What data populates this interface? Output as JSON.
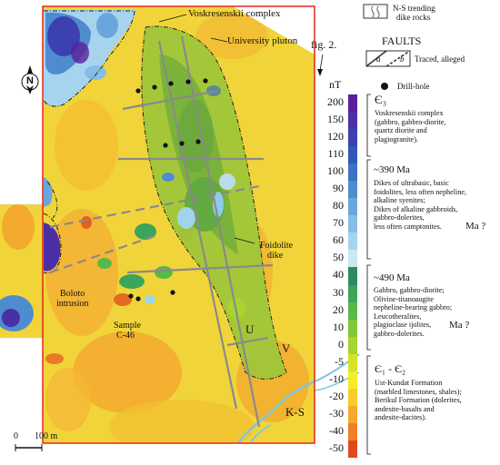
{
  "figure_label": "fig. 2.",
  "map_labels": {
    "voskresenskii": "Voskresenskii complex",
    "university": "University pluton",
    "foidolite": [
      "Foidolite",
      "dike"
    ],
    "boloto": [
      "Boloto",
      "intrusion"
    ],
    "sample": [
      "Sample",
      "C-46"
    ],
    "U": "U",
    "V": "V",
    "KS": "K-S"
  },
  "north_arrow": "N",
  "scale_bar": {
    "zero": "0",
    "label": "100 m"
  },
  "legend": {
    "dike_rocks": [
      "N-S trending",
      "dike rocks"
    ],
    "faults_title": "FAULTS",
    "faults_ab": [
      "a",
      "b"
    ],
    "faults_caption": "Traced, alleged",
    "drill_hole": "Drill-hole"
  },
  "color_scale": {
    "unit": "nT",
    "values": [
      "200",
      "150",
      "120",
      "110",
      "100",
      "90",
      "80",
      "70",
      "60",
      "50",
      "40",
      "30",
      "20",
      "10",
      "0",
      "-5",
      "-10",
      "-20",
      "-30",
      "-40",
      "-50"
    ],
    "colors": [
      "#5a1f9a",
      "#4b2fa5",
      "#3c40b0",
      "#3458b8",
      "#3b72c2",
      "#4f8ccf",
      "#6aa6dc",
      "#86bde6",
      "#a6d4ee",
      "#c8e8f2",
      "#2f8a62",
      "#3ba55a",
      "#58b848",
      "#80c838",
      "#a8d42e",
      "#d6e22a",
      "#f3ec26",
      "#f7cc2a",
      "#f6a82c",
      "#f08028",
      "#e04a1c"
    ]
  },
  "units_legend": [
    {
      "age": "Є₃",
      "text": [
        "Voskresenskii complex",
        "(gabbro, gabbro-diorite,",
        "quartz diorite and",
        "plagiogranite)."
      ]
    },
    {
      "age": "~390 Ma",
      "text": [
        "Dikes of ultrabasic, basic",
        "foidolites, less often nepheline,",
        "alkaline syenites;",
        "Dikes of alkaline gabbroids,",
        "gabbro-dolerites,",
        "less often camptonites."
      ],
      "query": "Ma ?"
    },
    {
      "age": "~490 Ma",
      "text": [
        "Gabbro, gabbro-diorite;",
        "Olivine-titanoaugite",
        "nepheline-bearing gabbro;",
        "Leucotheralites,",
        "plagioclase ijolites,",
        "gabbro-dolerites."
      ],
      "query": "Ma ?"
    },
    {
      "age": "Є₁ - Є₂",
      "text": [
        "Ust-Kundat Formation",
        "(marbled limestones, shales);",
        "Berikul Formation (dolerites,",
        "andesite-basalts and",
        "andesite-dacites)."
      ]
    }
  ]
}
